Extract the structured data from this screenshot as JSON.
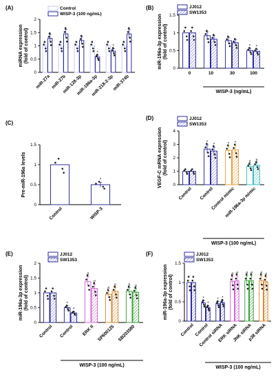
{
  "chart_data": [
    {
      "panel": "(A)",
      "type": "bar",
      "ylabel": "miRNA expression\n(fold of control)",
      "ylim": [
        0,
        2
      ],
      "yticks": [
        0,
        0.5,
        1,
        1.5,
        2
      ],
      "categories": [
        "miR-27a",
        "miR-27b",
        "miR-128-3p",
        "miR-196a-3p",
        "miR-218-2-3p",
        "miR-374b"
      ],
      "series": [
        {
          "name": "Control",
          "values": [
            1,
            1,
            1,
            1,
            1,
            1
          ],
          "color": "#c9c9ef",
          "pattern": "none"
        },
        {
          "name": "WISP-3 (100 ng/mL)",
          "values": [
            1.28,
            1.45,
            1.2,
            0.58,
            0.8,
            1.45
          ],
          "color": "#2b2b9a",
          "pattern": "none",
          "markers": [
            "",
            "",
            "",
            "*",
            "*",
            ""
          ]
        }
      ],
      "legend": "top-left"
    },
    {
      "panel": "(B)",
      "type": "bar",
      "ylabel": "miR-196a-3p expression\n(fold of control)",
      "xlabel": "WISP-3 (ng/mL)",
      "ylim": [
        0,
        1.5
      ],
      "yticks": [
        0,
        0.5,
        1,
        1.5
      ],
      "categories": [
        "0",
        "10",
        "30",
        "100"
      ],
      "series": [
        {
          "name": "JJ012",
          "values": [
            1,
            0.92,
            0.78,
            0.5
          ],
          "color": "#2b2b9a",
          "pattern": "none",
          "markers": [
            "",
            "",
            "",
            "*"
          ]
        },
        {
          "name": "SW1353",
          "values": [
            1,
            0.82,
            0.72,
            0.48
          ],
          "color": "#2b2b9a",
          "pattern": "hatch",
          "markers": [
            "",
            "",
            "",
            "*"
          ]
        }
      ],
      "legend": "top"
    },
    {
      "panel": "(C)",
      "type": "bar",
      "ylabel": "Pre-miR-196a levels",
      "ylim": [
        0,
        1.5
      ],
      "yticks": [
        0,
        0.5,
        1,
        1.5
      ],
      "categories": [
        "Control",
        "WISP-3"
      ],
      "series": [
        {
          "name": "",
          "values": [
            1,
            0.5
          ],
          "color": "#2b2b9a",
          "pattern": "none",
          "markers": [
            "",
            "*"
          ]
        }
      ]
    },
    {
      "panel": "(D)",
      "type": "bar",
      "ylabel": "VEGF-C mRNA expression\n(fold of control)",
      "xlabel": "WISP-3 (100 ng/mL)",
      "ylim": [
        0,
        4
      ],
      "yticks": [
        0,
        1,
        2,
        3,
        4
      ],
      "categories": [
        "Control",
        "Control",
        "Control mimic",
        "miR-196a-3p mimic"
      ],
      "series": [
        {
          "name": "JJ012",
          "values": [
            1,
            2.65,
            2.55,
            1.35
          ],
          "color": "#2b2b9a",
          "pattern": "none",
          "markers": [
            "",
            "*",
            "*",
            "#"
          ]
        },
        {
          "name": "SW1353",
          "values": [
            1,
            2.5,
            2.6,
            1.45
          ],
          "color": "#2b2b9a",
          "pattern": "hatch",
          "markers": [
            "",
            "*",
            "*",
            "#"
          ]
        }
      ],
      "group_colors": [
        "#2b2b9a",
        "#2b2b9a",
        "#e8a03c",
        "#3fbfbf"
      ],
      "legend": "top"
    },
    {
      "panel": "(E)",
      "type": "bar",
      "ylabel": "miR-196a-3p expression\n(fold of control)",
      "xlabel": "WISP-3 (100 ng/mL)",
      "ylim": [
        0,
        2
      ],
      "yticks": [
        0,
        0.5,
        1,
        1.5,
        2
      ],
      "categories": [
        "Control",
        "Control",
        "ERK II",
        "SP600125",
        "SB203580"
      ],
      "series": [
        {
          "name": "JJ012",
          "values": [
            1,
            0.5,
            1.38,
            0.95,
            1.05
          ],
          "color": "#2b2b9a",
          "pattern": "none",
          "markers": [
            "",
            "*",
            "#",
            "#",
            "#"
          ]
        },
        {
          "name": "SW1353",
          "values": [
            1,
            0.32,
            1.15,
            1.05,
            1.02
          ],
          "color": "#2b2b9a",
          "pattern": "hatch",
          "markers": [
            "",
            "*",
            "#",
            "#",
            "#"
          ]
        }
      ],
      "group_colors": [
        "#2b2b9a",
        "#2b2b9a",
        "#d16ad1",
        "#d98b3a",
        "#3ba03b"
      ],
      "legend": "top"
    },
    {
      "panel": "(F)",
      "type": "bar",
      "ylabel": "miR-196a-3p expression\n(fold of control)",
      "xlabel": "WISP-3 (100 ng/mL)",
      "ylim": [
        0,
        1.5
      ],
      "yticks": [
        0,
        0.5,
        1,
        1.5
      ],
      "categories": [
        "Control",
        "Control",
        "Control siRNA",
        "ERK siRNA",
        "JNK siRNA",
        "p38 siRNA"
      ],
      "series": [
        {
          "name": "JJ012",
          "values": [
            1,
            0.47,
            0.45,
            1.03,
            1.05,
            1.05
          ],
          "color": "#2b2b9a",
          "pattern": "none",
          "markers": [
            "",
            "*",
            "*",
            "#",
            "#",
            "#"
          ]
        },
        {
          "name": "SW1353",
          "values": [
            1,
            0.35,
            0.48,
            1.05,
            1.05,
            1.02
          ],
          "color": "#2b2b9a",
          "pattern": "hatch",
          "markers": [
            "",
            "*",
            "*",
            "#",
            "#",
            "#"
          ]
        }
      ],
      "group_colors": [
        "#2b2b9a",
        "#2b2b9a",
        "#2b2b9a",
        "#d16ad1",
        "#3ba03b",
        "#d98b3a"
      ],
      "legend": "top"
    }
  ]
}
